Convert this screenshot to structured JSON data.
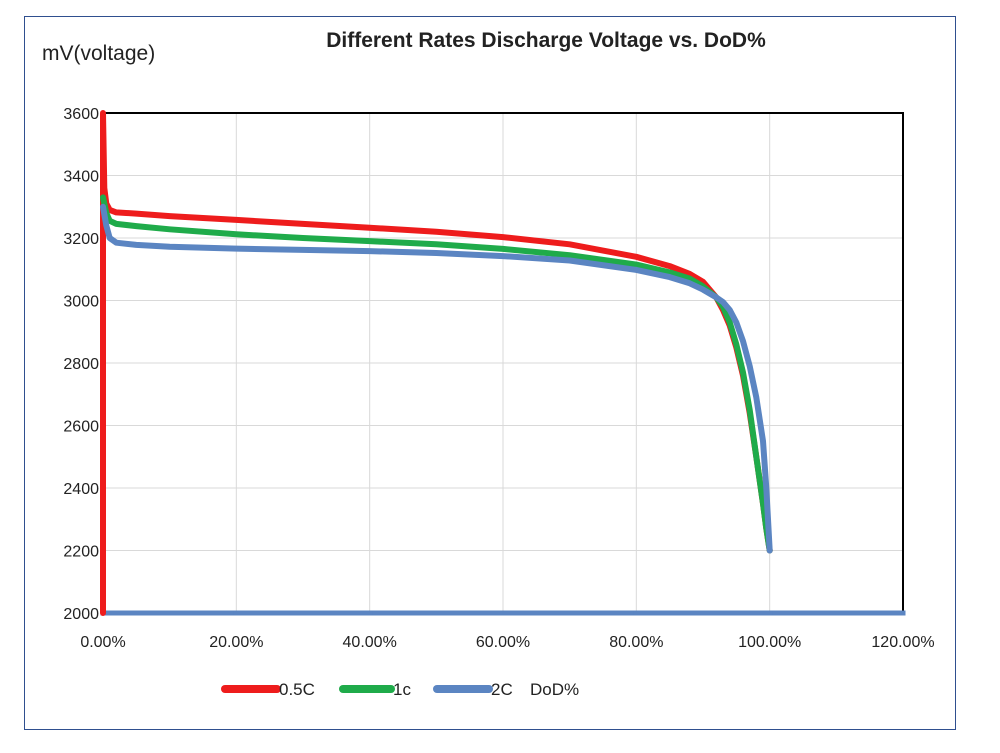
{
  "chart_data": {
    "type": "line",
    "title": "Different Rates Discharge  Voltage vs. DoD%",
    "ylabel": "mV(voltage)",
    "xlabel": "DoD%",
    "xlim": [
      0,
      120
    ],
    "ylim": [
      2000,
      3600
    ],
    "x_ticks": [
      0,
      20,
      40,
      60,
      80,
      100,
      120
    ],
    "x_tick_labels": [
      "0.00%",
      "20.00%",
      "40.00%",
      "60.00%",
      "80.00%",
      "100.00%",
      "120.00%"
    ],
    "y_ticks": [
      2000,
      2200,
      2400,
      2600,
      2800,
      3000,
      3200,
      3400,
      3600
    ],
    "y_tick_labels": [
      "2000",
      "2200",
      "2400",
      "2600",
      "2800",
      "3000",
      "3200",
      "3400",
      "3600"
    ],
    "grid": true,
    "legend_position": "bottom-left",
    "series": [
      {
        "name": "0.5C",
        "color": "#ee1c1c",
        "points": [
          [
            0,
            2000
          ],
          [
            0,
            3600
          ],
          [
            0.2,
            3360
          ],
          [
            0.5,
            3310
          ],
          [
            1,
            3290
          ],
          [
            2,
            3282
          ],
          [
            5,
            3278
          ],
          [
            10,
            3270
          ],
          [
            20,
            3258
          ],
          [
            30,
            3245
          ],
          [
            40,
            3233
          ],
          [
            50,
            3220
          ],
          [
            60,
            3203
          ],
          [
            70,
            3180
          ],
          [
            80,
            3140
          ],
          [
            85,
            3110
          ],
          [
            88,
            3085
          ],
          [
            90,
            3060
          ],
          [
            92,
            3010
          ],
          [
            93,
            2970
          ],
          [
            94,
            2920
          ],
          [
            95,
            2850
          ],
          [
            96,
            2760
          ],
          [
            97,
            2640
          ],
          [
            98,
            2500
          ],
          [
            99,
            2350
          ],
          [
            99.5,
            2270
          ],
          [
            100,
            2200
          ]
        ]
      },
      {
        "name": "1c",
        "color": "#1fab4a",
        "points": [
          [
            0,
            3330
          ],
          [
            0.5,
            3280
          ],
          [
            1,
            3255
          ],
          [
            2,
            3245
          ],
          [
            5,
            3238
          ],
          [
            10,
            3228
          ],
          [
            20,
            3212
          ],
          [
            30,
            3200
          ],
          [
            40,
            3190
          ],
          [
            50,
            3180
          ],
          [
            60,
            3165
          ],
          [
            70,
            3145
          ],
          [
            80,
            3115
          ],
          [
            85,
            3090
          ],
          [
            88,
            3070
          ],
          [
            90,
            3045
          ],
          [
            92,
            3010
          ],
          [
            93,
            2980
          ],
          [
            94,
            2930
          ],
          [
            95,
            2860
          ],
          [
            96,
            2770
          ],
          [
            97,
            2650
          ],
          [
            98,
            2500
          ],
          [
            99,
            2350
          ],
          [
            99.5,
            2270
          ],
          [
            100,
            2200
          ]
        ]
      },
      {
        "name": "2C",
        "color": "#5b85c2",
        "points": [
          [
            0,
            3300
          ],
          [
            0.5,
            3240
          ],
          [
            1,
            3200
          ],
          [
            2,
            3185
          ],
          [
            5,
            3178
          ],
          [
            10,
            3172
          ],
          [
            20,
            3166
          ],
          [
            30,
            3162
          ],
          [
            40,
            3158
          ],
          [
            50,
            3152
          ],
          [
            60,
            3142
          ],
          [
            70,
            3128
          ],
          [
            80,
            3098
          ],
          [
            85,
            3075
          ],
          [
            88,
            3055
          ],
          [
            90,
            3035
          ],
          [
            92,
            3010
          ],
          [
            93,
            2995
          ],
          [
            94,
            2970
          ],
          [
            95,
            2930
          ],
          [
            96,
            2870
          ],
          [
            97,
            2790
          ],
          [
            98,
            2690
          ],
          [
            99,
            2550
          ],
          [
            99.5,
            2400
          ],
          [
            100,
            2200
          ]
        ]
      }
    ],
    "baseline": {
      "color": "#5b85c2",
      "points": [
        [
          0,
          2000
        ],
        [
          120,
          2000
        ]
      ]
    }
  }
}
